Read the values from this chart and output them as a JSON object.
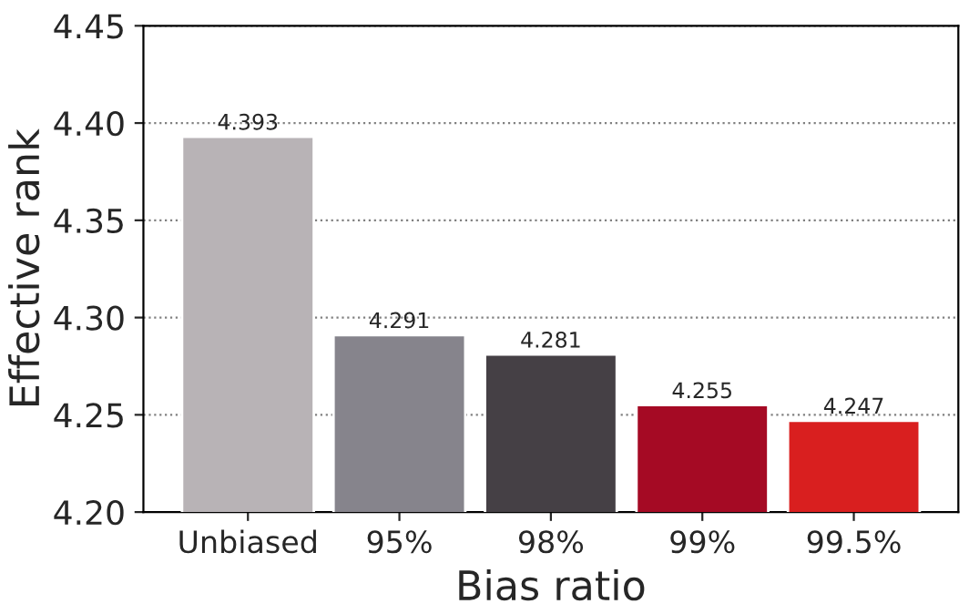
{
  "chart_data": {
    "type": "bar",
    "xlabel": "Bias ratio",
    "ylabel": "Effective rank",
    "categories": [
      "Unbiased",
      "95%",
      "98%",
      "99%",
      "99.5%"
    ],
    "values": [
      4.393,
      4.291,
      4.281,
      4.255,
      4.247
    ],
    "colors": [
      "#b8b3b6",
      "#86848c",
      "#454045",
      "#a50a24",
      "#d91f1f"
    ],
    "ylim": [
      4.2,
      4.45
    ],
    "yticks": [
      {
        "value": 4.2,
        "label": "4.20"
      },
      4.25,
      {
        "value": 4.3,
        "label": "4.30"
      },
      4.35,
      {
        "value": 4.4,
        "label": "4.40"
      },
      4.45
    ],
    "grid": "y",
    "data_labels": true
  }
}
